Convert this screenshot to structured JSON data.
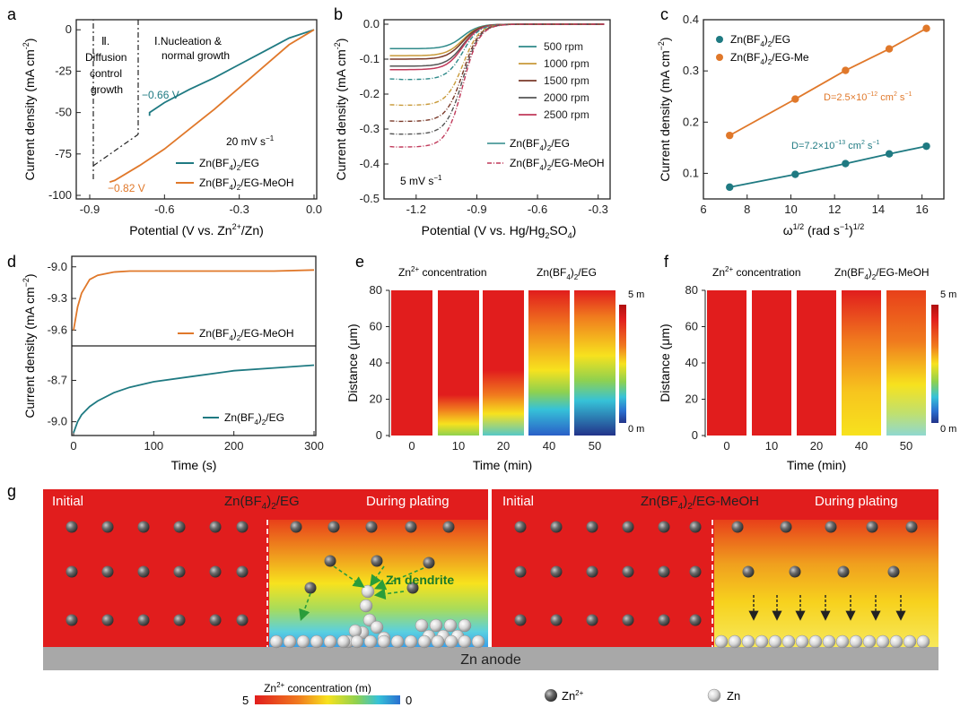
{
  "colors": {
    "eg": "#1f7a82",
    "meoh": "#e0782a",
    "bg_red": "#e11d1d",
    "anode": "#a8a8a8"
  },
  "panels": {
    "a": {
      "letter": "a",
      "xlabel": "Potential (V vs. Zn",
      "xlabel_sup": "2+",
      "xlabel_end": "/Zn)",
      "ylabel": "Current density (mA cm",
      "ylabel_sup": "-2",
      "ylabel_end": ")",
      "xticks": [
        "-0.9",
        "-0.6",
        "-0.3",
        "0.0"
      ],
      "yticks": [
        "0",
        "-25",
        "-50",
        "-75",
        "-100"
      ],
      "region2": [
        "Ⅱ.",
        "Diffusion",
        "control",
        "growth"
      ],
      "region1": [
        "Ⅰ.Nucleation &",
        "normal growth"
      ],
      "annot_eg": "−0.66 V",
      "annot_meoh": "−0.82 V",
      "scan_rate": "20 mV s",
      "scan_rate_sup": "−1",
      "legend": [
        "Zn(BF",
        "4",
        ")",
        "2",
        "/EG",
        "/EG-MeOH"
      ]
    },
    "b": {
      "letter": "b",
      "xlabel": "Potential (V vs. Hg/Hg",
      "xlabel_sub": "2",
      "xlabel_mid": "SO",
      "xlabel_sub2": "4",
      "xlabel_end": ")",
      "ylabel": "Current density (mA cm",
      "ylabel_sup": "-2",
      "ylabel_end": ")",
      "xticks": [
        "-1.2",
        "-0.9",
        "-0.6",
        "-0.3"
      ],
      "yticks": [
        "0.0",
        "-0.1",
        "-0.2",
        "-0.3",
        "-0.4",
        "-0.5"
      ],
      "rpm_labels": [
        "500 rpm",
        "1000 rpm",
        "1500 rpm",
        "2000 rpm",
        "2500 rpm"
      ],
      "rpm_colors": [
        "#2f8a8a",
        "#c89a3a",
        "#7a3a2a",
        "#555555",
        "#c0395a"
      ],
      "scan_rate": "5 mV s",
      "scan_rate_sup": "−1"
    },
    "c": {
      "letter": "c",
      "xlabel": "ω",
      "xlabel_sup": "1/2",
      "xlabel_end": " (rad s",
      "xlabel_sup2": "−1",
      "xlabel_end2": ")",
      "xlabel_sup3": "1/2",
      "ylabel": "Current density (mA cm",
      "ylabel_sup": "−2",
      "ylabel_end": ")",
      "xticks": [
        "6",
        "8",
        "10",
        "12",
        "14",
        "16"
      ],
      "yticks": [
        "0.1",
        "0.2",
        "0.3",
        "0.4"
      ],
      "legend_eg": "Zn(BF",
      "legend_meoh": "Zn(BF",
      "d_meoh": "D=2.5×10",
      "d_meoh_sup": "−12",
      "d_meoh_end": " cm",
      "d_meoh_sup2": "2",
      "d_meoh_end2": " s",
      "d_meoh_sup3": "−1",
      "d_eg": "D=7.2×10",
      "d_eg_sup": "−13",
      "d_eg_end": " cm",
      "d_eg_sup2": "2",
      "d_eg_end2": " s",
      "d_eg_sup3": "−1"
    },
    "d": {
      "letter": "d",
      "xlabel": "Time (s)",
      "ylabel": "Current density (mA cm",
      "ylabel_sup": "−2",
      "ylabel_end": ")",
      "xticks": [
        "0",
        "100",
        "200",
        "300"
      ],
      "yticks_top": [
        "-9.0",
        "-9.3",
        "-9.6"
      ],
      "yticks_bottom": [
        "-8.7",
        "-9.0"
      ],
      "legend_top": "Zn(BF",
      "legend_bottom": "Zn(BF"
    },
    "e": {
      "letter": "e",
      "title": "Zn",
      "title_sup": "2+",
      "title_end": " concentration",
      "electrolyte": "Zn(BF",
      "electrolyte_end": "/EG",
      "ylabel": "Distance (μm)",
      "xlabel": "Time (min)",
      "xticks": [
        "0",
        "10",
        "20",
        "40",
        "50"
      ],
      "yticks": [
        "0",
        "20",
        "40",
        "60",
        "80"
      ],
      "scale_top": "5 m",
      "scale_bottom": "0 m"
    },
    "f": {
      "letter": "f",
      "title": "Zn",
      "title_sup": "2+",
      "title_end": " concentration",
      "electrolyte": "Zn(BF",
      "electrolyte_end": "/EG-MeOH",
      "ylabel": "Distance (μm)",
      "xlabel": "Time (min)",
      "xticks": [
        "0",
        "10",
        "20",
        "40",
        "50"
      ],
      "yticks": [
        "0",
        "20",
        "40",
        "60",
        "80"
      ],
      "scale_top": "5 m",
      "scale_bottom": "0 m"
    },
    "g": {
      "letter": "g",
      "initial": "Initial",
      "during": "During plating",
      "electrolyte_left": "Zn(BF",
      "electrolyte_left_end": "/EG",
      "electrolyte_right": "Zn(BF",
      "electrolyte_right_end": "/EG-MeOH",
      "dendrite": "Zn dendrite",
      "anode": "Zn anode",
      "scale_title": "Zn",
      "scale_title_sup": "2+",
      "scale_title_end": " concentration (m)",
      "scale_left": "5",
      "scale_right": "0",
      "legend_ion": "Zn",
      "legend_ion_sup": "2+",
      "legend_metal": "Zn"
    }
  },
  "chart_data": [
    {
      "type": "line",
      "panel": "a",
      "title": "",
      "xlabel": "Potential (V vs. Zn2+/Zn)",
      "ylabel": "Current density (mA cm-2)",
      "xlim": [
        -0.9,
        0.0
      ],
      "ylim": [
        -100,
        5
      ],
      "series": [
        {
          "name": "Zn(BF4)2/EG",
          "color": "#1f7a82",
          "x": [
            -0.66,
            -0.66,
            -0.6,
            -0.5,
            -0.4,
            -0.3,
            -0.2,
            -0.1,
            0.0
          ],
          "y": [
            -52,
            -50,
            -44,
            -36,
            -29,
            -21,
            -13,
            -5,
            0
          ]
        },
        {
          "name": "Zn(BF4)2/EG-MeOH",
          "color": "#e0782a",
          "x": [
            -0.82,
            -0.8,
            -0.7,
            -0.6,
            -0.5,
            -0.4,
            -0.3,
            -0.2,
            -0.1,
            0.0
          ],
          "y": [
            -92,
            -91,
            -82,
            -72,
            -60,
            -48,
            -35,
            -22,
            -9,
            0
          ]
        }
      ],
      "annotations": [
        "-0.66 V",
        "-0.82 V",
        "20 mV s-1"
      ]
    },
    {
      "type": "line",
      "panel": "b",
      "xlabel": "Potential (V vs. Hg/Hg2SO4)",
      "ylabel": "Current density (mA cm-2)",
      "xlim": [
        -1.35,
        -0.25
      ],
      "ylim": [
        -0.5,
        0.0
      ],
      "series_eg_plateau": [
        -0.07,
        -0.09,
        -0.1,
        -0.12,
        -0.13
      ],
      "series_meoh_plateau": [
        -0.17,
        -0.25,
        -0.3,
        -0.34,
        -0.38
      ],
      "legend": [
        "500 rpm",
        "1000 rpm",
        "1500 rpm",
        "2000 rpm",
        "2500 rpm",
        "Zn(BF4)2/EG",
        "Zn(BF4)2/EG-MeOH"
      ]
    },
    {
      "type": "scatter",
      "panel": "c",
      "xlabel": "ω1/2 (rad s-1)1/2",
      "ylabel": "Current density (mA cm-2)",
      "xlim": [
        6,
        17
      ],
      "ylim": [
        0.05,
        0.4
      ],
      "series": [
        {
          "name": "Zn(BF4)2/EG",
          "color": "#1f7a82",
          "x": [
            7.2,
            10.2,
            12.5,
            14.5,
            16.2
          ],
          "y": [
            0.073,
            0.098,
            0.119,
            0.138,
            0.153
          ]
        },
        {
          "name": "Zn(BF4)2/EG-Me",
          "color": "#e0782a",
          "x": [
            7.2,
            10.2,
            12.5,
            14.5,
            16.2
          ],
          "y": [
            0.174,
            0.245,
            0.301,
            0.343,
            0.383
          ]
        }
      ]
    },
    {
      "type": "line",
      "panel": "d",
      "xlabel": "Time (s)",
      "ylabel": "Current density (mA cm-2)",
      "xlim": [
        0,
        300
      ],
      "series": [
        {
          "name": "Zn(BF4)2/EG-MeOH",
          "color": "#e0782a",
          "ylim": [
            -9.75,
            -8.9
          ],
          "x": [
            0,
            5,
            10,
            20,
            30,
            50,
            70,
            100,
            150,
            200,
            250,
            300
          ],
          "y": [
            -9.6,
            -9.38,
            -9.25,
            -9.12,
            -9.08,
            -9.05,
            -9.04,
            -9.04,
            -9.04,
            -9.04,
            -9.04,
            -9.03
          ]
        },
        {
          "name": "Zn(BF4)2/EG",
          "color": "#1f7a82",
          "ylim": [
            -9.1,
            -8.45
          ],
          "x": [
            0,
            5,
            10,
            20,
            30,
            50,
            70,
            100,
            150,
            200,
            250,
            300
          ],
          "y": [
            -9.08,
            -9.0,
            -8.95,
            -8.89,
            -8.85,
            -8.79,
            -8.75,
            -8.71,
            -8.67,
            -8.63,
            -8.61,
            -8.59
          ]
        }
      ]
    },
    {
      "type": "heatmap",
      "panel": "e",
      "xlabel": "Time (min)",
      "ylabel": "Distance (μm)",
      "categories": [
        "0",
        "10",
        "20",
        "40",
        "50"
      ],
      "depletion_height_um": [
        0,
        20,
        30,
        55,
        62
      ]
    },
    {
      "type": "heatmap",
      "panel": "f",
      "xlabel": "Time (min)",
      "ylabel": "Distance (μm)",
      "categories": [
        "0",
        "10",
        "20",
        "40",
        "50"
      ],
      "depletion_height_um": [
        0,
        0,
        0,
        50,
        70
      ]
    }
  ]
}
